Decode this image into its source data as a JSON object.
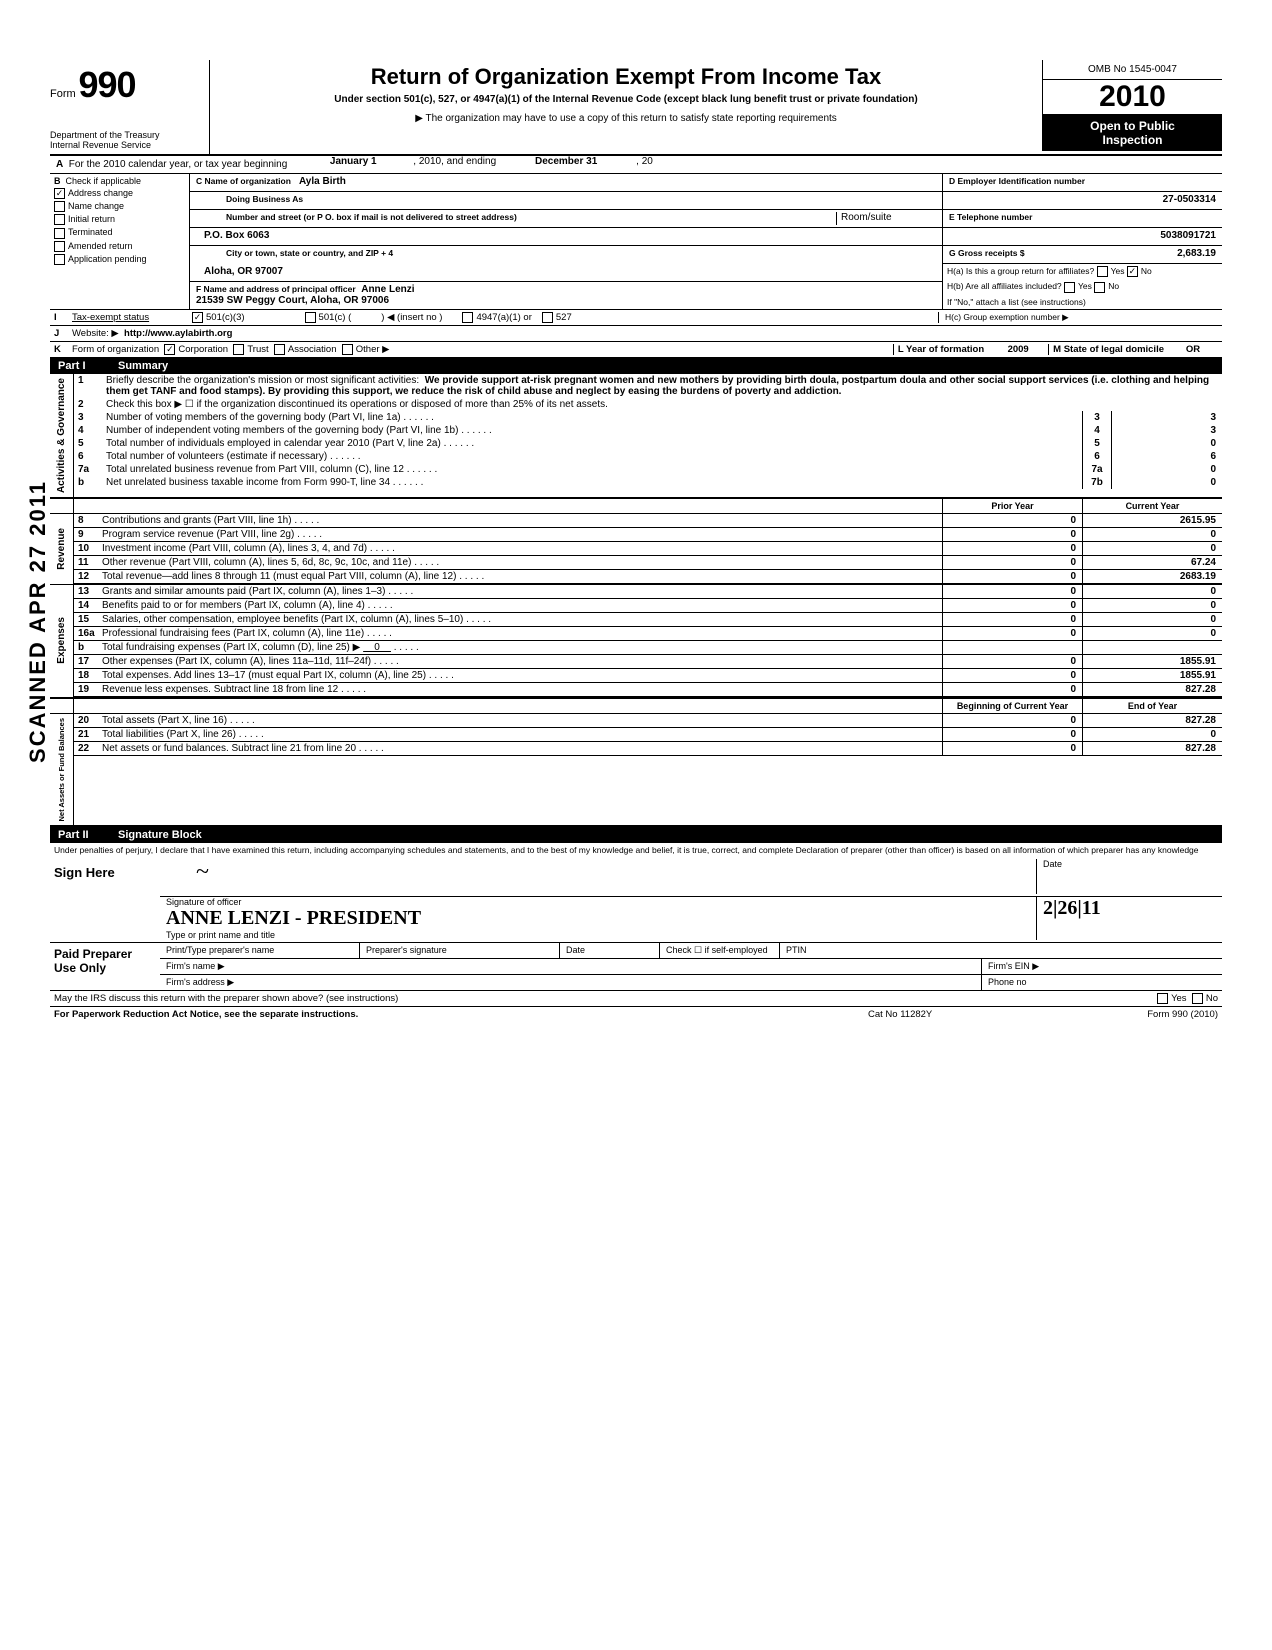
{
  "form": {
    "number_prefix": "Form",
    "number": "990",
    "title": "Return of Organization Exempt From Income Tax",
    "subtitle": "Under section 501(c), 527, or 4947(a)(1) of the Internal Revenue Code (except black lung benefit trust or private foundation)",
    "note": "▶ The organization may have to use a copy of this return to satisfy state reporting requirements",
    "dept1": "Department of the Treasury",
    "dept2": "Internal Revenue Service",
    "omb": "OMB No 1545-0047",
    "year": "2010",
    "open1": "Open to Public",
    "open2": "Inspection"
  },
  "lineA": {
    "letter": "A",
    "text1": "For the 2010 calendar year, or tax year beginning",
    "val1": "January 1",
    "text2": ", 2010, and ending",
    "val2": "December 31",
    "text3": ", 20"
  },
  "colB": {
    "letter": "B",
    "header": "Check if applicable",
    "items": [
      "Address change",
      "Name change",
      "Initial return",
      "Terminated",
      "Amended return",
      "Application pending"
    ]
  },
  "colC": {
    "name_label": "C Name of organization",
    "name": "Ayla Birth",
    "dba_label": "Doing Business As",
    "street_label": "Number and street (or P O. box if mail is not delivered to street address)",
    "room_label": "Room/suite",
    "street": "P.O. Box 6063",
    "city_label": "City or town, state or country, and ZIP + 4",
    "city": "Aloha, OR 97007",
    "officer_label": "F  Name and address of principal officer",
    "officer": "Anne Lenzi",
    "officer_addr": "21539 SW Peggy Court, Aloha, OR 97006"
  },
  "colD": {
    "d_label": "D  Employer Identification number",
    "d_val": "27-0503314",
    "e_label": "E  Telephone number",
    "e_val": "5038091721",
    "g_label": "G  Gross receipts $",
    "g_val": "2,683.19",
    "ha_label": "H(a)  Is this a group return for affiliates?",
    "hb_label": "H(b)  Are all affiliates included?",
    "h_note": "If \"No,\" attach a list  (see instructions)",
    "hc_label": "H(c)  Group exemption number ▶",
    "yes": "Yes",
    "no": "No"
  },
  "lineI": {
    "letter": "I",
    "label": "Tax-exempt status",
    "opt1": "501(c)(3)",
    "opt2": "501(c) (",
    "opt2b": ") ◀ (insert no )",
    "opt3": "4947(a)(1) or",
    "opt4": "527"
  },
  "lineJ": {
    "letter": "J",
    "label": "Website: ▶",
    "val": "http://www.aylabirth.org"
  },
  "lineK": {
    "letter": "K",
    "label": "Form of organization",
    "opts": [
      "Corporation",
      "Trust",
      "Association",
      "Other ▶"
    ],
    "l_label": "L  Year of formation",
    "l_val": "2009",
    "m_label": "M  State of legal domicile",
    "m_val": "OR"
  },
  "partI": {
    "num": "Part I",
    "title": "Summary"
  },
  "activities": {
    "label": "Activities & Governance",
    "line1": {
      "num": "1",
      "text": "Briefly describe the organization's mission or most significant activities:",
      "val": "We provide support at-risk pregnant women and new mothers by providing birth doula, postpartum doula and other social support services (i.e. clothing and helping them get TANF and food stamps).  By providing this support, we reduce the risk of child abuse and neglect by easing the burdens of poverty and addiction."
    },
    "line2": {
      "num": "2",
      "text": "Check this box ▶ ☐ if the organization discontinued its operations or disposed of more than 25% of its net assets."
    },
    "lines": [
      {
        "num": "3",
        "text": "Number of voting members of the governing body (Part VI, line 1a)",
        "box": "3",
        "val": "3"
      },
      {
        "num": "4",
        "text": "Number of independent voting members of the governing body (Part VI, line 1b)",
        "box": "4",
        "val": "3"
      },
      {
        "num": "5",
        "text": "Total number of individuals employed in calendar year 2010 (Part V, line 2a)",
        "box": "5",
        "val": "0"
      },
      {
        "num": "6",
        "text": "Total number of volunteers (estimate if necessary)",
        "box": "6",
        "val": "6"
      },
      {
        "num": "7a",
        "text": "Total unrelated business revenue from Part VIII, column (C), line 12",
        "box": "7a",
        "val": "0"
      },
      {
        "num": "b",
        "text": "Net unrelated business taxable income from Form 990-T, line 34",
        "box": "7b",
        "val": "0"
      }
    ]
  },
  "twocol": {
    "prior": "Prior Year",
    "current": "Current Year",
    "begin": "Beginning of Current Year",
    "end": "End of Year"
  },
  "revenue": {
    "label": "Revenue",
    "lines": [
      {
        "num": "8",
        "text": "Contributions and grants (Part VIII, line 1h)",
        "prior": "0",
        "current": "2615.95"
      },
      {
        "num": "9",
        "text": "Program service revenue (Part VIII, line 2g)",
        "prior": "0",
        "current": "0"
      },
      {
        "num": "10",
        "text": "Investment income (Part VIII, column (A), lines 3, 4, and 7d)",
        "prior": "0",
        "current": "0"
      },
      {
        "num": "11",
        "text": "Other revenue (Part VIII, column (A), lines 5, 6d, 8c, 9c, 10c, and 11e)",
        "prior": "0",
        "current": "67.24"
      },
      {
        "num": "12",
        "text": "Total revenue—add lines 8 through 11 (must equal Part VIII, column (A), line 12)",
        "prior": "0",
        "current": "2683.19"
      }
    ]
  },
  "expenses": {
    "label": "Expenses",
    "lines": [
      {
        "num": "13",
        "text": "Grants and similar amounts paid (Part IX, column (A), lines 1–3)",
        "prior": "0",
        "current": "0"
      },
      {
        "num": "14",
        "text": "Benefits paid to or for members (Part IX, column (A), line 4)",
        "prior": "0",
        "current": "0"
      },
      {
        "num": "15",
        "text": "Salaries, other compensation, employee benefits (Part IX, column (A), lines 5–10)",
        "prior": "0",
        "current": "0"
      },
      {
        "num": "16a",
        "text": "Professional fundraising fees (Part IX, column (A), line 11e)",
        "prior": "0",
        "current": "0"
      },
      {
        "num": "b",
        "text": "Total fundraising expenses (Part IX, column (D), line 25) ▶",
        "inline": "0",
        "prior": "",
        "current": ""
      },
      {
        "num": "17",
        "text": "Other expenses (Part IX, column (A), lines 11a–11d, 11f–24f)",
        "prior": "0",
        "current": "1855.91"
      },
      {
        "num": "18",
        "text": "Total expenses. Add lines 13–17 (must equal Part IX, column (A), line 25)",
        "prior": "0",
        "current": "1855.91"
      },
      {
        "num": "19",
        "text": "Revenue less expenses. Subtract line 18 from line 12",
        "prior": "0",
        "current": "827.28"
      }
    ]
  },
  "netassets": {
    "label": "Net Assets or Fund Balances",
    "lines": [
      {
        "num": "20",
        "text": "Total assets (Part X, line 16)",
        "prior": "0",
        "current": "827.28"
      },
      {
        "num": "21",
        "text": "Total liabilities (Part X, line 26)",
        "prior": "0",
        "current": "0"
      },
      {
        "num": "22",
        "text": "Net assets or fund balances. Subtract line 21 from line 20",
        "prior": "0",
        "current": "827.28"
      }
    ]
  },
  "partII": {
    "num": "Part II",
    "title": "Signature Block"
  },
  "sig": {
    "notice": "Under penalties of perjury, I declare that I have examined this return, including accompanying schedules and statements, and to the best of my knowledge  and belief, it is true, correct, and complete  Declaration of preparer (other than officer) is based on all information of which preparer has any knowledge",
    "sign_here": "Sign Here",
    "sig_label": "Signature of officer",
    "sig_name": "ANNE LENZI - PRESIDENT",
    "name_label": "Type or print name and title",
    "date_label": "Date",
    "date_val": "2|26|11"
  },
  "preparer": {
    "left": "Paid Preparer Use Only",
    "name_label": "Print/Type preparer's name",
    "sig_label": "Preparer's signature",
    "date_label": "Date",
    "check_label": "Check ☐ if self-employed",
    "ptin": "PTIN",
    "firm_name": "Firm's name    ▶",
    "firm_ein": "Firm's EIN ▶",
    "firm_addr": "Firm's address ▶",
    "phone": "Phone no"
  },
  "footer": {
    "discuss": "May the IRS discuss this return with the preparer shown above? (see instructions)",
    "yes": "Yes",
    "no": "No",
    "paperwork": "For Paperwork Reduction Act Notice, see the separate instructions.",
    "cat": "Cat No 11282Y",
    "form": "Form 990 (2010)"
  },
  "stamp": "SCANNED  APR 27 2011"
}
